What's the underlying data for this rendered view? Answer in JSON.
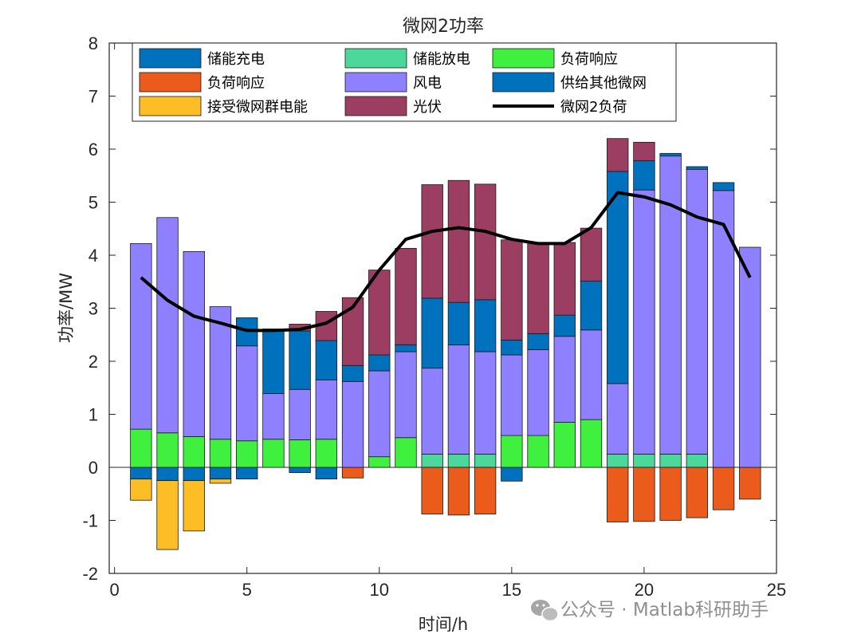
{
  "chart_data": {
    "type": "stacked-bar+line",
    "title": "微网2功率",
    "xlabel": "时间/h",
    "ylabel": "功率/MW",
    "xlim": [
      -0.2,
      25
    ],
    "ylim": [
      -2,
      8
    ],
    "xticks": [
      0,
      5,
      10,
      15,
      20,
      25
    ],
    "yticks": [
      -2,
      -1,
      0,
      1,
      2,
      3,
      4,
      5,
      6,
      7,
      8
    ],
    "x": [
      1,
      2,
      3,
      4,
      5,
      6,
      7,
      8,
      9,
      10,
      11,
      12,
      13,
      14,
      15,
      16,
      17,
      18,
      19,
      20,
      21,
      22,
      23,
      24
    ],
    "series": [
      {
        "name": "储能充电",
        "color": "#0072BD",
        "values": [
          -0.22,
          -0.25,
          -0.25,
          -0.22,
          -0.22,
          0,
          -0.1,
          -0.22,
          0,
          0,
          0,
          0,
          0,
          0,
          -0.26,
          0,
          0,
          0,
          0,
          0,
          0,
          0,
          0,
          0
        ]
      },
      {
        "name": "储能放电",
        "color": "#4DD89B",
        "values": [
          0,
          0,
          0,
          0,
          0,
          0,
          0,
          0,
          0,
          0,
          0,
          0.25,
          0.25,
          0.25,
          0,
          0,
          0,
          0,
          0.25,
          0.25,
          0.25,
          0.25,
          0,
          0
        ]
      },
      {
        "name": "负荷响应",
        "color": "#3FF03F",
        "values": [
          0.72,
          0.65,
          0.58,
          0.53,
          0.5,
          0.53,
          0.52,
          0.53,
          0,
          0.2,
          0.56,
          0,
          0,
          0,
          0.6,
          0.6,
          0.85,
          0.9,
          0,
          0,
          0,
          0,
          0,
          0
        ]
      },
      {
        "name": "负荷响应",
        "color": "#EA5B1C",
        "values": [
          0,
          0,
          0,
          0,
          0,
          0,
          0,
          0,
          -0.2,
          0,
          0,
          -0.88,
          -0.9,
          -0.88,
          0,
          0,
          0,
          0,
          -1.03,
          -1.02,
          -1.0,
          -0.95,
          -0.8,
          -0.6
        ]
      },
      {
        "name": "风电",
        "color": "#8E80FF",
        "values": [
          3.5,
          4.06,
          3.49,
          2.5,
          1.79,
          0.86,
          0.95,
          1.12,
          1.62,
          1.62,
          1.62,
          1.62,
          2.06,
          1.93,
          1.52,
          1.62,
          1.62,
          1.69,
          1.33,
          4.98,
          5.62,
          5.37,
          5.22,
          4.15
        ]
      },
      {
        "name": "供给其他微网",
        "color": "#0072BD",
        "values": [
          0,
          0,
          0,
          0,
          0.53,
          1.22,
          1.1,
          0.74,
          0.3,
          0.3,
          0.13,
          1.32,
          0.8,
          0.98,
          0.28,
          0.3,
          0.4,
          0.92,
          4.0,
          0.55,
          0.05,
          0.05,
          0.15,
          0
        ]
      },
      {
        "name": "接受微网群电能",
        "color": "#FCBE24",
        "values": [
          -0.4,
          -1.3,
          -0.95,
          -0.08,
          0,
          0,
          0,
          0,
          0,
          0,
          0,
          0,
          0,
          0,
          0,
          0,
          0,
          0,
          0,
          0,
          0,
          0,
          0,
          0
        ]
      },
      {
        "name": "光伏",
        "color": "#9B3E62",
        "values": [
          0,
          0,
          0,
          0,
          0,
          0,
          0.13,
          0.55,
          1.28,
          1.6,
          1.82,
          2.14,
          2.3,
          2.18,
          1.89,
          1.72,
          1.37,
          1.0,
          0.62,
          0.35,
          0,
          0,
          0,
          0
        ]
      }
    ],
    "line": {
      "name": "微网2负荷",
      "color": "#000000",
      "values": [
        3.58,
        3.15,
        2.85,
        2.72,
        2.58,
        2.58,
        2.6,
        2.72,
        3.02,
        3.72,
        4.3,
        4.45,
        4.52,
        4.45,
        4.3,
        4.22,
        4.22,
        4.52,
        5.18,
        5.1,
        4.95,
        4.72,
        4.58,
        3.58
      ]
    },
    "legend_position": "top",
    "grid": false
  },
  "watermark": "公众号 · Matlab科研助手"
}
